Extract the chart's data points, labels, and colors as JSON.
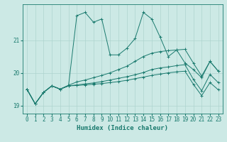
{
  "xlabel": "Humidex (Indice chaleur)",
  "bg_color": "#cce9e5",
  "line_color": "#1a7a6e",
  "grid_color": "#aed4cf",
  "xlim": [
    -0.5,
    23.5
  ],
  "ylim": [
    18.75,
    22.1
  ],
  "yticks": [
    19,
    20,
    21
  ],
  "xticks": [
    0,
    1,
    2,
    3,
    4,
    5,
    6,
    7,
    8,
    9,
    10,
    11,
    12,
    13,
    14,
    15,
    16,
    17,
    18,
    19,
    20,
    21,
    22,
    23
  ],
  "series": [
    {
      "x": [
        0,
        1,
        2,
        3,
        4,
        5,
        6,
        7,
        8,
        9,
        10,
        11,
        12,
        13,
        14,
        15,
        16,
        17,
        18,
        19,
        20,
        21,
        22,
        23
      ],
      "y": [
        19.5,
        19.05,
        19.4,
        19.6,
        19.5,
        19.6,
        21.75,
        21.85,
        21.55,
        21.65,
        20.55,
        20.55,
        20.75,
        21.05,
        21.85,
        21.65,
        21.1,
        20.5,
        20.7,
        20.3,
        20.1,
        19.85,
        20.35,
        20.05
      ]
    },
    {
      "x": [
        0,
        1,
        2,
        3,
        4,
        5,
        6,
        7,
        8,
        9,
        10,
        11,
        12,
        13,
        14,
        15,
        16,
        17,
        18,
        19,
        20,
        21,
        22,
        23
      ],
      "y": [
        19.5,
        19.05,
        19.4,
        19.6,
        19.5,
        19.62,
        19.72,
        19.78,
        19.85,
        19.92,
        20.0,
        20.1,
        20.2,
        20.35,
        20.5,
        20.6,
        20.65,
        20.68,
        20.7,
        20.72,
        20.3,
        19.9,
        20.35,
        20.05
      ]
    },
    {
      "x": [
        0,
        1,
        2,
        3,
        4,
        5,
        6,
        7,
        8,
        9,
        10,
        11,
        12,
        13,
        14,
        15,
        16,
        17,
        18,
        19,
        20,
        21,
        22,
        23
      ],
      "y": [
        19.5,
        19.05,
        19.4,
        19.6,
        19.5,
        19.6,
        19.63,
        19.66,
        19.69,
        19.73,
        19.78,
        19.83,
        19.88,
        19.94,
        20.01,
        20.1,
        20.15,
        20.18,
        20.22,
        20.25,
        19.8,
        19.45,
        19.95,
        19.7
      ]
    },
    {
      "x": [
        0,
        1,
        2,
        3,
        4,
        5,
        6,
        7,
        8,
        9,
        10,
        11,
        12,
        13,
        14,
        15,
        16,
        17,
        18,
        19,
        20,
        21,
        22,
        23
      ],
      "y": [
        19.5,
        19.05,
        19.4,
        19.6,
        19.5,
        19.6,
        19.61,
        19.63,
        19.65,
        19.67,
        19.7,
        19.73,
        19.77,
        19.82,
        19.87,
        19.92,
        19.96,
        20.0,
        20.03,
        20.05,
        19.65,
        19.3,
        19.7,
        19.48
      ]
    }
  ]
}
